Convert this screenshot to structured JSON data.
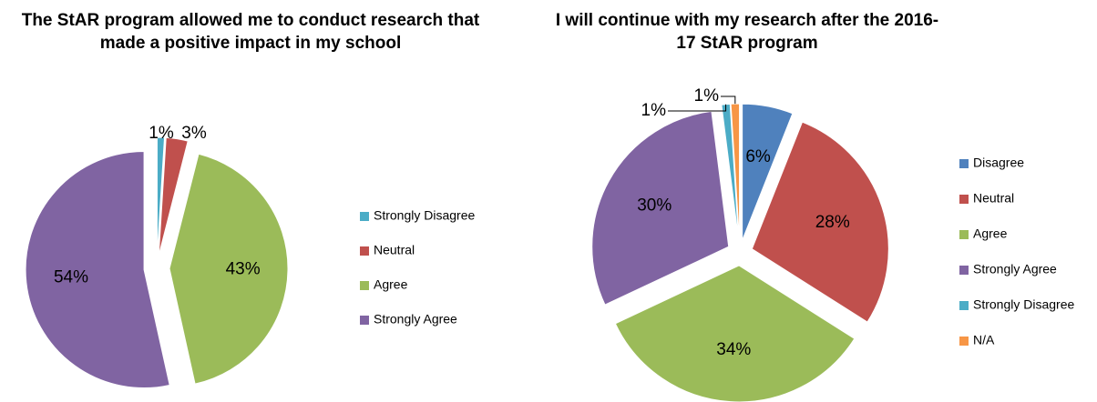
{
  "chart_data": [
    {
      "type": "pie",
      "title": "The StAR program allowed me to conduct research that made a positive impact in my school",
      "categories": [
        "Strongly Disagree",
        "Neutral",
        "Agree",
        "Strongly Agree"
      ],
      "values": [
        1,
        3,
        43,
        54
      ],
      "value_labels": [
        "1%",
        "3%",
        "43%",
        "54%"
      ],
      "colors": [
        "#4bacc6",
        "#c0504d",
        "#9bbb59",
        "#8064a2"
      ],
      "legend": "right"
    },
    {
      "type": "pie",
      "title": "I will continue with my research after the 2016-17 StAR program",
      "categories": [
        "Disagree",
        "Neutral",
        "Agree",
        "Strongly Agree",
        "Strongly Disagree",
        "N/A"
      ],
      "values": [
        6,
        28,
        34,
        30,
        1,
        1
      ],
      "value_labels": [
        "6%",
        "28%",
        "34%",
        "30%",
        "1%",
        "1%"
      ],
      "colors": [
        "#4f81bd",
        "#c0504d",
        "#9bbb59",
        "#8064a2",
        "#4bacc6",
        "#f79646"
      ],
      "legend": "right"
    }
  ]
}
